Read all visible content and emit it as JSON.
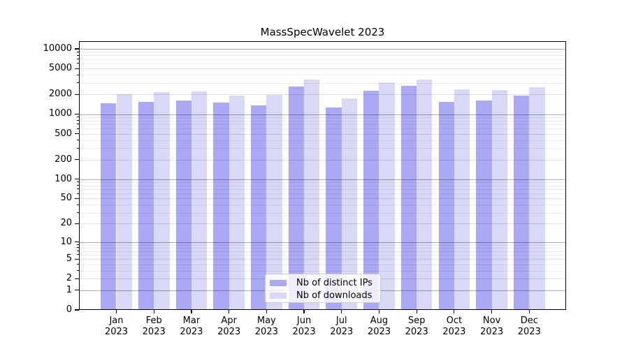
{
  "title": "MassSpecWavelet 2023",
  "chart_data": {
    "type": "bar",
    "title": "MassSpecWavelet 2023",
    "y_scale": "log1p",
    "ylim": [
      0,
      13000
    ],
    "grid": true,
    "legend_position": "lower center",
    "categories": [
      "Jan 2023",
      "Feb 2023",
      "Mar 2023",
      "Apr 2023",
      "May 2023",
      "Jun 2023",
      "Jul 2023",
      "Aug 2023",
      "Sep 2023",
      "Oct 2023",
      "Nov 2023",
      "Dec 2023"
    ],
    "x_tick_lines": [
      {
        "month": "Jan",
        "year": "2023"
      },
      {
        "month": "Feb",
        "year": "2023"
      },
      {
        "month": "Mar",
        "year": "2023"
      },
      {
        "month": "Apr",
        "year": "2023"
      },
      {
        "month": "May",
        "year": "2023"
      },
      {
        "month": "Jun",
        "year": "2023"
      },
      {
        "month": "Jul",
        "year": "2023"
      },
      {
        "month": "Aug",
        "year": "2023"
      },
      {
        "month": "Sep",
        "year": "2023"
      },
      {
        "month": "Oct",
        "year": "2023"
      },
      {
        "month": "Nov",
        "year": "2023"
      },
      {
        "month": "Dec",
        "year": "2023"
      }
    ],
    "series": [
      {
        "name": "Nb of distinct IPs",
        "color": "#a9a9f5",
        "values": [
          1450,
          1550,
          1610,
          1510,
          1370,
          2630,
          1270,
          2260,
          2730,
          1550,
          1630,
          1930
        ]
      },
      {
        "name": "Nb of downloads",
        "color": "#d9d9f7",
        "values": [
          2030,
          2170,
          2220,
          1900,
          1970,
          3350,
          1720,
          3090,
          3400,
          2400,
          2320,
          2560
        ]
      }
    ],
    "y_ticks": [
      0,
      1,
      2,
      5,
      10,
      20,
      50,
      100,
      200,
      500,
      1000,
      2000,
      5000,
      10000
    ],
    "y_tick_labels": [
      "0",
      "1",
      "2",
      "5",
      "10",
      "20",
      "50",
      "100",
      "200",
      "500",
      "1000",
      "2000",
      "5000",
      "10000"
    ],
    "y_minor_ticks": [
      3,
      4,
      6,
      7,
      8,
      9,
      30,
      40,
      60,
      70,
      80,
      90,
      300,
      400,
      600,
      700,
      800,
      900,
      3000,
      4000,
      6000,
      7000,
      8000,
      9000
    ]
  },
  "legend": {
    "item1": "Nb of distinct IPs",
    "item2": "Nb of downloads"
  }
}
